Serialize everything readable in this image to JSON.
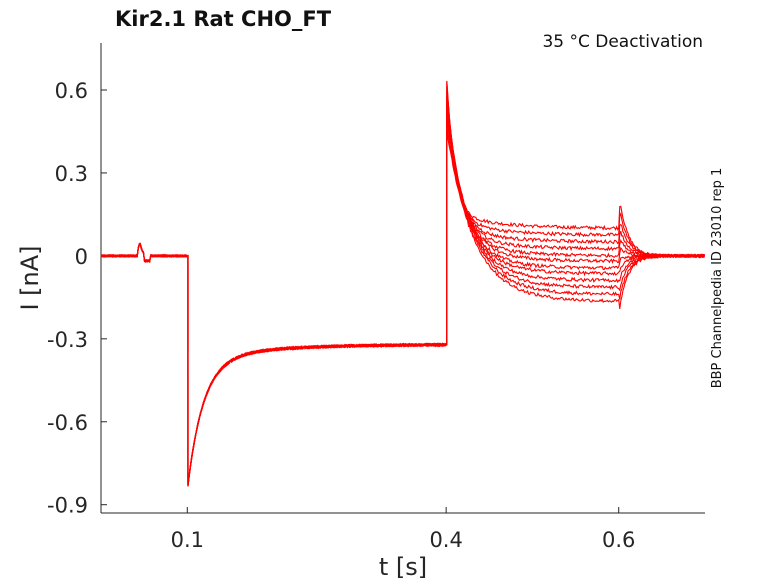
{
  "chart_data": {
    "type": "line",
    "title": "Kir2.1  Rat  CHO_FT",
    "annotation": "35 °C  Deactivation",
    "side_label": "BBP Channelpedia ID 23010 rep 1",
    "xlabel": "t [s]",
    "ylabel": "I [nA]",
    "xlim": [
      0,
      0.7
    ],
    "ylim": [
      -0.93,
      0.77
    ],
    "xticks": [
      0.1,
      0.4,
      0.6
    ],
    "xtick_labels": [
      "0.1",
      "0.4",
      "0.6"
    ],
    "yticks": [
      -0.9,
      -0.6,
      -0.3,
      0,
      0.3,
      0.6
    ],
    "ytick_labels": [
      "-0.9",
      "-0.6",
      "-0.3",
      "0",
      "0.3",
      "0.6"
    ],
    "grid": false,
    "color": "#ff0000",
    "trace_count": 12,
    "events": {
      "artifact_time": 0.045,
      "artifact_peak": 0.05,
      "step1_time": 0.1,
      "step1_peak": -0.79,
      "step1_steady": -0.32,
      "step2_time": 0.4,
      "step2_peak": 0.63,
      "step3_time": 0.6,
      "step3_peak": 0.23,
      "baseline": 0.0
    },
    "steady_levels_step2": [
      0.1,
      0.075,
      0.05,
      0.025,
      0.0,
      -0.02,
      -0.045,
      -0.065,
      -0.09,
      -0.115,
      -0.14,
      -0.165
    ]
  }
}
